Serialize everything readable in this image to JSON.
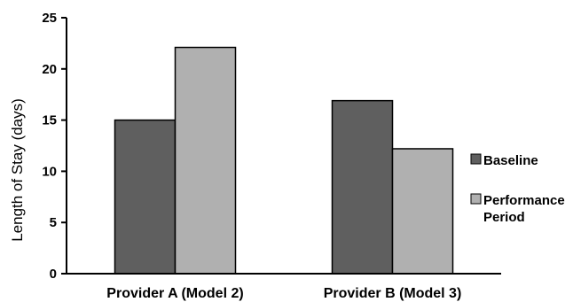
{
  "chart_data": {
    "type": "bar",
    "categories": [
      "Provider A (Model 2)",
      "Provider B (Model 3)"
    ],
    "series": [
      {
        "name": "Baseline",
        "values": [
          15,
          16.9
        ],
        "color": "#5f5f5f"
      },
      {
        "name": "Performance Period",
        "values": [
          22.1,
          12.2
        ],
        "color": "#b0b0b0"
      }
    ],
    "title": "",
    "xlabel": "",
    "ylabel": "Length of Stay (days)",
    "ylim": [
      0,
      25
    ],
    "yticks": [
      "0",
      "5",
      "10",
      "15",
      "20",
      "25"
    ],
    "grid": false,
    "legend": {
      "position": "right",
      "entries": [
        {
          "lines": [
            "Baseline"
          ]
        },
        {
          "lines": [
            "Performance",
            "Period"
          ]
        }
      ]
    }
  }
}
